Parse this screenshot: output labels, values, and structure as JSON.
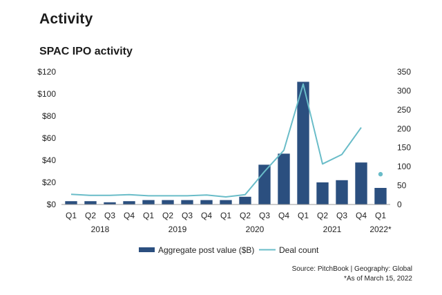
{
  "header": {
    "title": "Activity"
  },
  "colors": {
    "bar": "#2b4f7f",
    "line": "#69bcc8",
    "axis": "#9a9a9a"
  },
  "chart_data": {
    "type": "bar",
    "title": "SPAC IPO activity",
    "quarters": [
      "Q1",
      "Q2",
      "Q3",
      "Q4",
      "Q1",
      "Q2",
      "Q3",
      "Q4",
      "Q1",
      "Q2",
      "Q3",
      "Q4",
      "Q1",
      "Q2",
      "Q3",
      "Q4",
      "Q1"
    ],
    "years": [
      {
        "label": "2018",
        "start": 0,
        "end": 3
      },
      {
        "label": "2019",
        "start": 4,
        "end": 7
      },
      {
        "label": "2020",
        "start": 8,
        "end": 11
      },
      {
        "label": "2021",
        "start": 12,
        "end": 15
      },
      {
        "label": "2022*",
        "start": 16,
        "end": 16
      }
    ],
    "left_axis": {
      "ticks": [
        "$0",
        "$20",
        "$40",
        "$60",
        "$80",
        "$100",
        "$120"
      ],
      "ylim": [
        0,
        120
      ]
    },
    "right_axis": {
      "ticks": [
        "0",
        "50",
        "100",
        "150",
        "200",
        "250",
        "300",
        "350"
      ],
      "ylim": [
        0,
        350
      ]
    },
    "series": [
      {
        "name": "Aggregate post value ($B)",
        "type": "bar",
        "axis": "left",
        "values": [
          3,
          3,
          2,
          3,
          4,
          4,
          4,
          4,
          4,
          7,
          36,
          46,
          111,
          20,
          22,
          38,
          15
        ]
      },
      {
        "name": "Deal count",
        "type": "line",
        "axis": "right",
        "values": [
          27,
          24,
          24,
          26,
          23,
          23,
          23,
          25,
          20,
          26,
          87,
          143,
          318,
          107,
          132,
          203,
          null
        ],
        "point": {
          "index": 16,
          "value": 80
        }
      }
    ],
    "legend": "bottom-center"
  },
  "footer": {
    "source": "Source: PitchBook | Geography: Global",
    "note": "*As of March 15, 2022"
  }
}
